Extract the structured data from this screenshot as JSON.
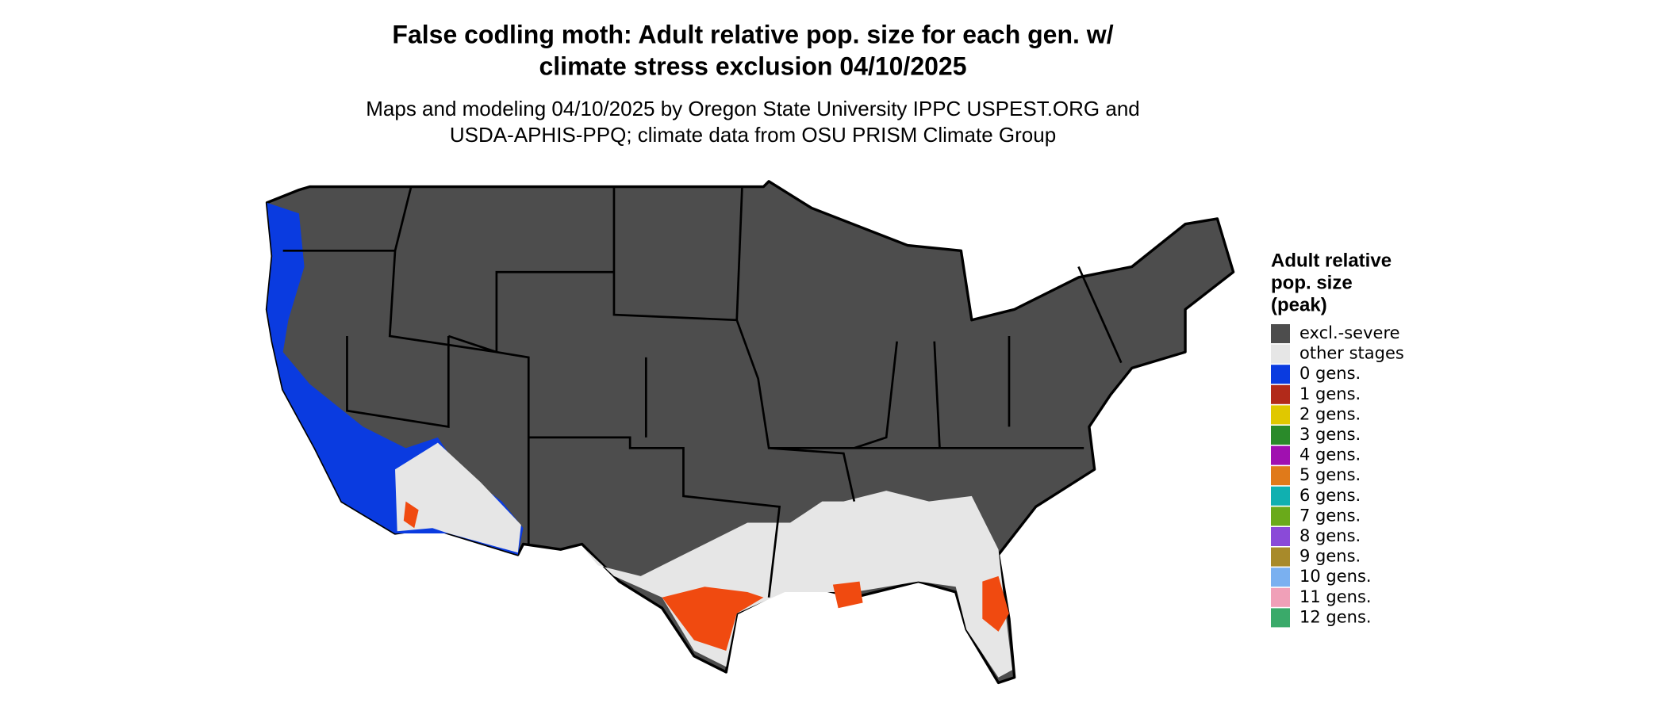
{
  "header": {
    "title": [
      "False codling moth: Adult relative pop. size for each gen. w/",
      "climate stress exclusion 04/10/2025"
    ],
    "subtitle": [
      "Maps and modeling 04/10/2025 by Oregon State University IPPC USPEST.ORG and",
      "USDA-APHIS-PPQ; climate data from OSU PRISM Climate Group"
    ]
  },
  "legend": {
    "title": [
      "Adult relative",
      "pop. size",
      "(peak)"
    ],
    "items": [
      {
        "label": "excl.-severe",
        "color": "#4d4d4d"
      },
      {
        "label": "other stages",
        "color": "#e6e6e6"
      },
      {
        "label": "0 gens.",
        "color": "#0a3be0"
      },
      {
        "label": "1 gens.",
        "color": "#b22a1a"
      },
      {
        "label": "2 gens.",
        "color": "#e0c800"
      },
      {
        "label": "3 gens.",
        "color": "#2a8a2a"
      },
      {
        "label": "4 gens.",
        "color": "#a010b0"
      },
      {
        "label": "5 gens.",
        "color": "#e07a1a"
      },
      {
        "label": "6 gens.",
        "color": "#10b0b0"
      },
      {
        "label": "7 gens.",
        "color": "#6aaa1a"
      },
      {
        "label": "8 gens.",
        "color": "#8a4ad8"
      },
      {
        "label": "9 gens.",
        "color": "#a88a2a"
      },
      {
        "label": "10 gens.",
        "color": "#7ab0f0"
      },
      {
        "label": "11 gens.",
        "color": "#f0a0b8"
      },
      {
        "label": "12 gens.",
        "color": "#3aaa6a"
      }
    ]
  }
}
